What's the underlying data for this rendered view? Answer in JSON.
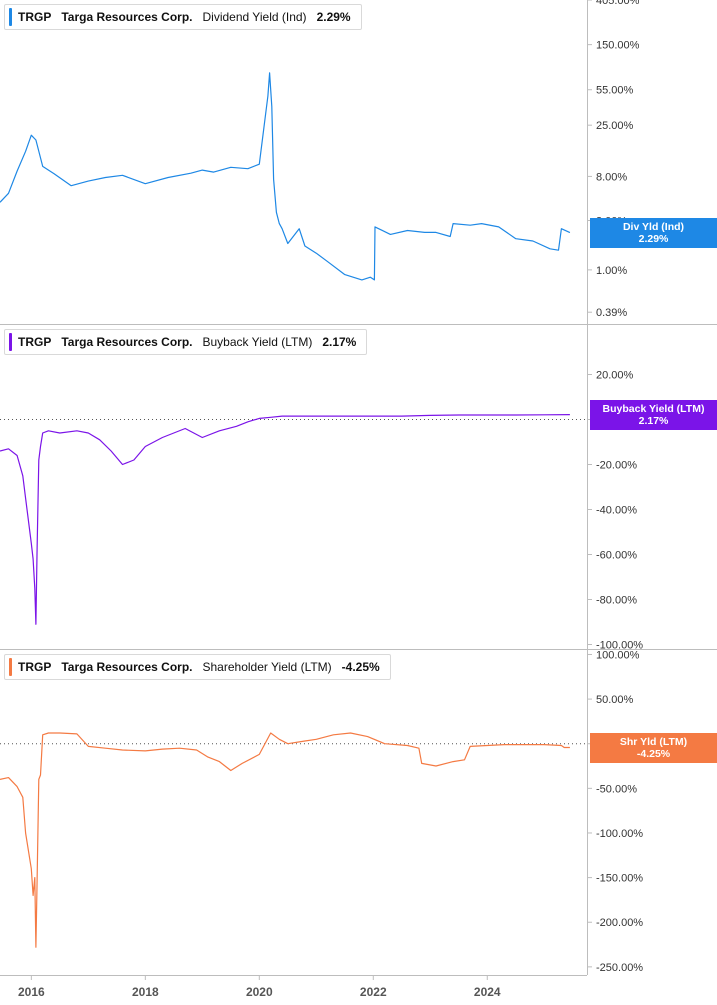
{
  "chart_data": [
    {
      "type": "line",
      "ticker": "TRGP",
      "company": "Targa Resources Corp.",
      "metric": "Dividend Yield (Ind)",
      "current_value": "2.29%",
      "badge_label": "Div Yld (Ind)",
      "color": "#1e88e5",
      "y_scale": "log",
      "ylim": [
        0.3,
        405
      ],
      "y_ticks": [
        405,
        150,
        55,
        25,
        8,
        3,
        1,
        0.39
      ],
      "y_tick_labels": [
        "405.00%",
        "150.00%",
        "55.00%",
        "25.00%",
        "8.00%",
        "3.00%",
        "1.00%",
        "0.39%"
      ],
      "reference_line": null,
      "series": [
        {
          "x": [
            2015.45,
            2015.6,
            2015.75,
            2015.9,
            2016.0,
            2016.08,
            2016.2,
            2016.4,
            2016.7,
            2017.0,
            2017.3,
            2017.6,
            2018.0,
            2018.4,
            2018.8,
            2019.0,
            2019.2,
            2019.5,
            2019.8,
            2020.0,
            2020.15,
            2020.18,
            2020.22,
            2020.25,
            2020.3,
            2020.35,
            2020.4,
            2020.5,
            2020.7,
            2020.8,
            2021.0,
            2021.2,
            2021.5,
            2021.8,
            2021.95,
            2022.02,
            2022.03,
            2022.3,
            2022.6,
            2022.9,
            2023.1,
            2023.35,
            2023.4,
            2023.7,
            2023.9,
            2024.2,
            2024.5,
            2024.8,
            2025.1,
            2025.25,
            2025.3,
            2025.45
          ],
          "y": [
            4.5,
            5.5,
            9,
            14,
            20,
            18,
            10,
            8.5,
            6.5,
            7.2,
            7.8,
            8.2,
            6.8,
            7.8,
            8.6,
            9.2,
            8.8,
            9.8,
            9.5,
            10.5,
            48,
            80,
            38,
            7.5,
            3.6,
            2.8,
            2.5,
            1.8,
            2.5,
            1.7,
            1.45,
            1.2,
            0.9,
            0.8,
            0.85,
            0.8,
            2.6,
            2.2,
            2.4,
            2.3,
            2.3,
            2.1,
            2.8,
            2.7,
            2.8,
            2.6,
            2.0,
            1.9,
            1.6,
            1.55,
            2.5,
            2.29
          ]
        }
      ]
    },
    {
      "type": "line",
      "ticker": "TRGP",
      "company": "Targa Resources Corp.",
      "metric": "Buyback Yield (LTM)",
      "current_value": "2.17%",
      "badge_label": "Buyback Yield (LTM)",
      "color": "#7b14e8",
      "y_scale": "linear",
      "ylim": [
        -102,
        42
      ],
      "y_ticks": [
        20,
        0,
        -20,
        -40,
        -60,
        -80,
        -100
      ],
      "y_tick_labels": [
        "20.00%",
        "0.00%",
        "-20.00%",
        "-40.00%",
        "-60.00%",
        "-80.00%",
        "-100.00%"
      ],
      "reference_line": 0,
      "series": [
        {
          "x": [
            2015.45,
            2015.6,
            2015.75,
            2015.85,
            2015.9,
            2016.0,
            2016.03,
            2016.06,
            2016.08,
            2016.1,
            2016.13,
            2016.16,
            2016.2,
            2016.3,
            2016.5,
            2016.8,
            2017.0,
            2017.2,
            2017.4,
            2017.6,
            2017.8,
            2018.0,
            2018.3,
            2018.5,
            2018.7,
            2019.0,
            2019.3,
            2019.6,
            2019.8,
            2020.0,
            2020.2,
            2020.4,
            2021.0,
            2021.5,
            2022.0,
            2022.5,
            2023.0,
            2023.5,
            2024.0,
            2024.5,
            2025.0,
            2025.45
          ],
          "y": [
            -14,
            -13,
            -16,
            -25,
            -35,
            -55,
            -62,
            -75,
            -91,
            -60,
            -18,
            -12,
            -6,
            -5,
            -6,
            -5,
            -6,
            -9,
            -14,
            -20,
            -18,
            -12,
            -8,
            -6,
            -4,
            -8,
            -5,
            -3,
            -1,
            0.5,
            1,
            1.5,
            1.5,
            1.5,
            1.5,
            1.5,
            1.8,
            2,
            2,
            2,
            2.1,
            2.17
          ]
        }
      ]
    },
    {
      "type": "line",
      "ticker": "TRGP",
      "company": "Targa Resources Corp.",
      "metric": "Shareholder Yield (LTM)",
      "current_value": "-4.25%",
      "badge_label": "Shr Yld (LTM)",
      "color": "#f47a43",
      "y_scale": "linear",
      "ylim": [
        -258,
        105
      ],
      "y_ticks": [
        100,
        50,
        0,
        -50,
        -100,
        -150,
        -200,
        -250
      ],
      "y_tick_labels": [
        "100.00%",
        "50.00%",
        "0.00%",
        "-50.00%",
        "-100.00%",
        "-150.00%",
        "-200.00%",
        "-250.00%"
      ],
      "reference_line": 0,
      "x_ticks": [
        2016,
        2018,
        2020,
        2022,
        2024
      ],
      "x_tick_labels": [
        "2016",
        "2018",
        "2020",
        "2022",
        "2024"
      ],
      "series": [
        {
          "x": [
            2015.45,
            2015.6,
            2015.75,
            2015.85,
            2015.9,
            2016.0,
            2016.03,
            2016.06,
            2016.08,
            2016.1,
            2016.13,
            2016.16,
            2016.2,
            2016.3,
            2016.5,
            2016.8,
            2017.0,
            2017.3,
            2017.6,
            2018.0,
            2018.3,
            2018.6,
            2018.9,
            2019.1,
            2019.3,
            2019.5,
            2019.7,
            2020.0,
            2020.2,
            2020.35,
            2020.5,
            2020.8,
            2021.0,
            2021.3,
            2021.6,
            2021.9,
            2022.2,
            2022.6,
            2022.8,
            2022.85,
            2023.1,
            2023.4,
            2023.6,
            2023.7,
            2024.0,
            2024.3,
            2024.6,
            2025.0,
            2025.3,
            2025.35,
            2025.45
          ],
          "y": [
            -40,
            -38,
            -48,
            -60,
            -100,
            -140,
            -170,
            -150,
            -228,
            -160,
            -40,
            -35,
            10,
            12,
            12,
            11,
            -3,
            -5,
            -7,
            -8,
            -6,
            -5,
            -7,
            -15,
            -20,
            -30,
            -22,
            -12,
            12,
            5,
            0,
            3,
            5,
            10,
            12,
            8,
            0,
            -2,
            -5,
            -22,
            -25,
            -20,
            -18,
            -3,
            -2,
            -1,
            -1,
            -1,
            -2,
            -4.25,
            -4.25
          ]
        }
      ]
    }
  ]
}
